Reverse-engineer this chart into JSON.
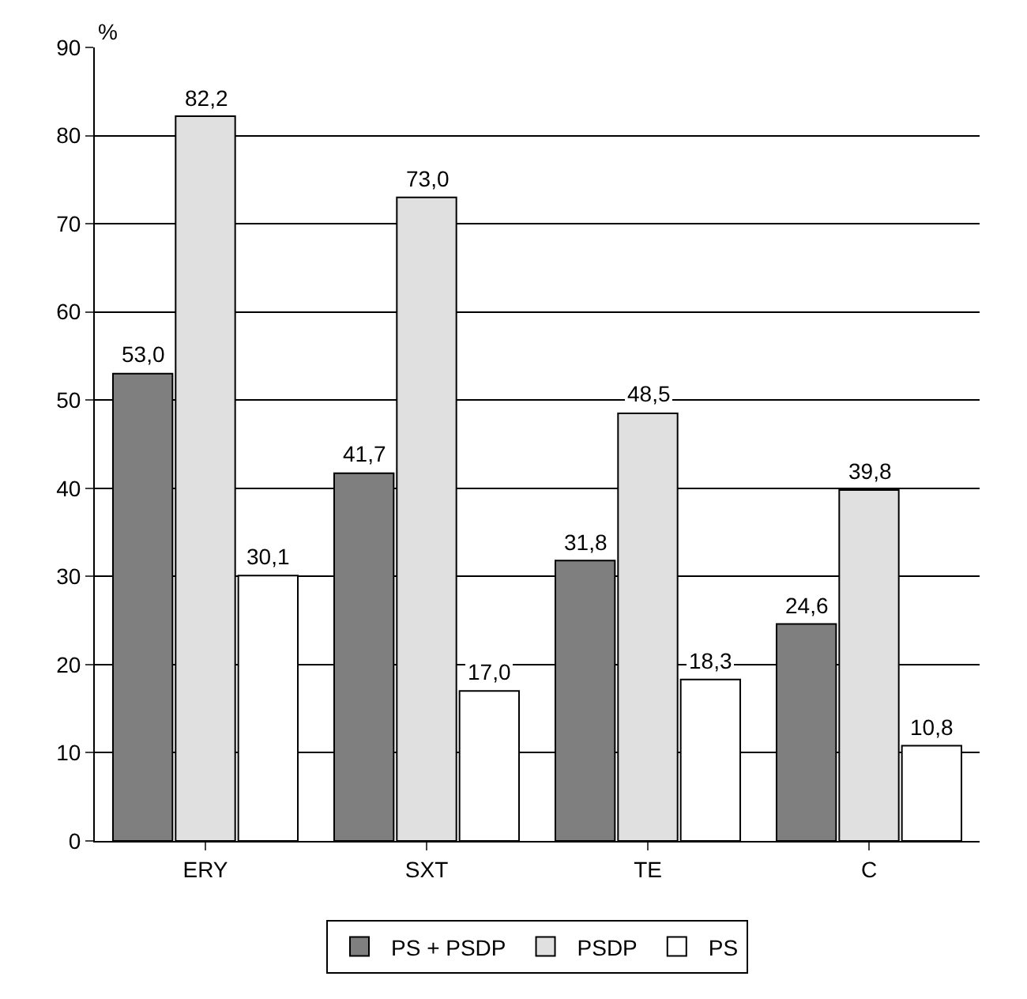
{
  "chart_data": {
    "type": "bar",
    "ylabel": "%",
    "categories": [
      "ERY",
      "SXT",
      "TE",
      "C"
    ],
    "series": [
      {
        "name": "PS + PSDP",
        "color": "#7f7f7f",
        "values": [
          53.0,
          41.7,
          31.8,
          24.6
        ],
        "value_labels": [
          "53,0",
          "41,7",
          "31,8",
          "24,6"
        ]
      },
      {
        "name": "PSDP",
        "color": "#e0e0e0",
        "values": [
          82.2,
          73.0,
          48.5,
          39.8
        ],
        "value_labels": [
          "82,2",
          "73,0",
          "48,5",
          "39,8"
        ]
      },
      {
        "name": "PS",
        "color": "#ffffff",
        "values": [
          30.1,
          17.0,
          18.3,
          10.8
        ],
        "value_labels": [
          "30,1",
          "17,0",
          "18,3",
          "10,8"
        ]
      }
    ],
    "ylim": [
      0,
      90
    ],
    "yticks": [
      0,
      10,
      20,
      30,
      40,
      50,
      60,
      70,
      80,
      90
    ],
    "grid": "y",
    "legend": "bottom"
  }
}
